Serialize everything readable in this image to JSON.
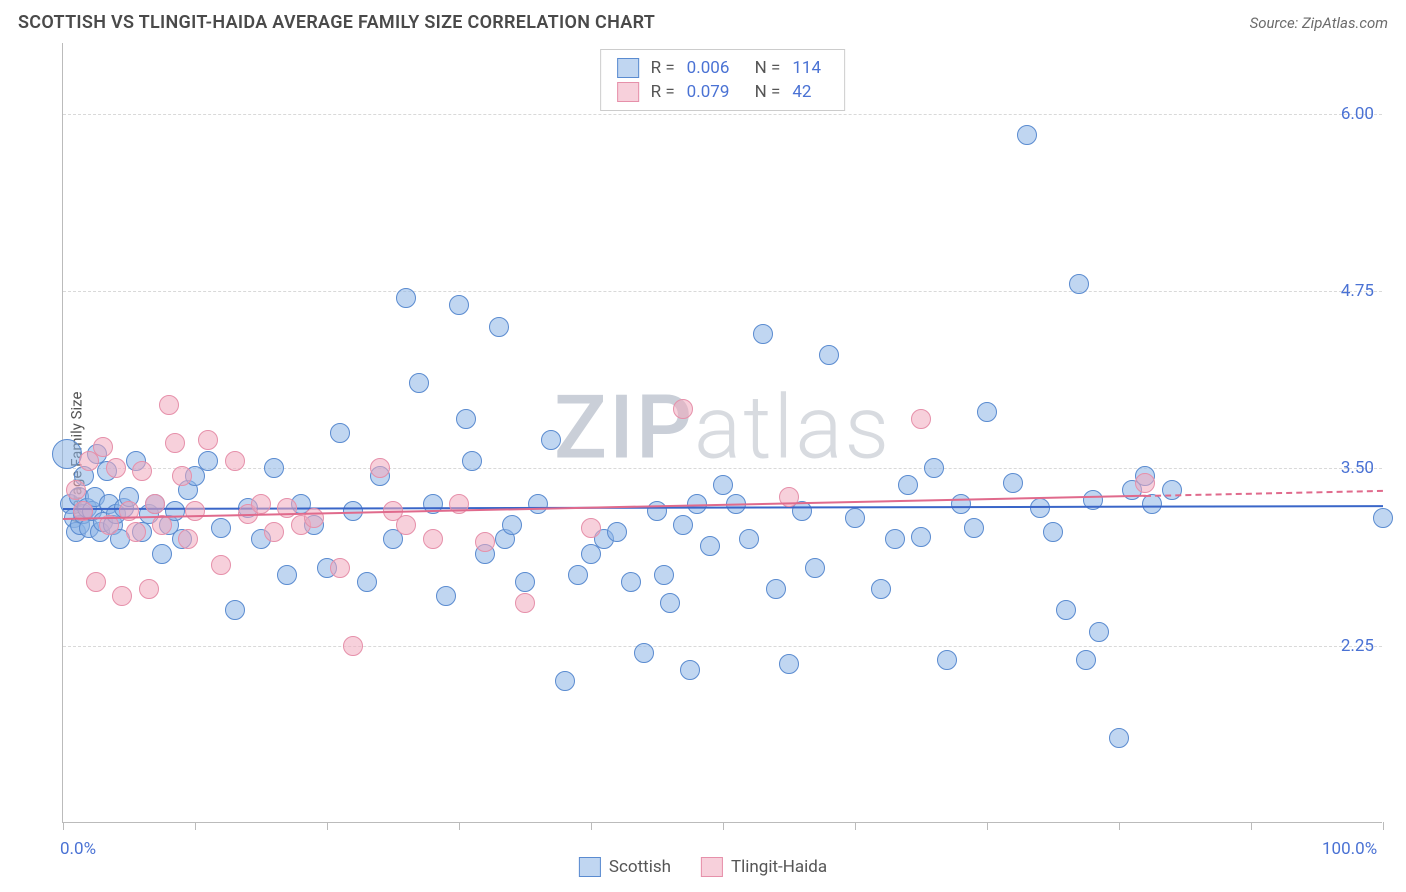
{
  "title": "SCOTTISH VS TLINGIT-HAIDA AVERAGE FAMILY SIZE CORRELATION CHART",
  "source_label": "Source:",
  "source_name": "ZipAtlas.com",
  "ylabel": "Average Family Size",
  "watermark": {
    "bold": "ZIP",
    "rest": "atlas"
  },
  "chart": {
    "type": "scatter",
    "xlim": [
      0,
      100
    ],
    "ylim": [
      1.0,
      6.5
    ],
    "x_ticks": [
      0,
      10,
      20,
      30,
      40,
      50,
      60,
      70,
      80,
      90,
      100
    ],
    "x_tick_labels": {
      "0": "0.0%",
      "100": "100.0%"
    },
    "y_grid": [
      2.25,
      3.5,
      4.75,
      6.0
    ],
    "y_tick_labels": [
      "2.25",
      "3.50",
      "4.75",
      "6.00"
    ],
    "background": "#ffffff",
    "grid_color": "#d9d9d9",
    "axis_color": "#bbbbbb",
    "label_color": "#4a72d4",
    "point_radius": 10,
    "series": [
      {
        "name": "Scottish",
        "fill": "rgba(140,180,230,0.55)",
        "stroke": "#5a8bd0",
        "trend_color": "#3a66c8",
        "trend": {
          "y_start": 3.22,
          "y_end": 3.24,
          "x_solid_end": 100
        },
        "R": "0.006",
        "N": "114",
        "points": [
          [
            0.3,
            3.6,
            "big"
          ],
          [
            0.5,
            3.25
          ],
          [
            0.8,
            3.15
          ],
          [
            1.0,
            3.05
          ],
          [
            1.2,
            3.3
          ],
          [
            1.3,
            3.1
          ],
          [
            1.5,
            3.18
          ],
          [
            1.6,
            3.45
          ],
          [
            1.8,
            3.22
          ],
          [
            2.0,
            3.08
          ],
          [
            2.2,
            3.2
          ],
          [
            2.4,
            3.3
          ],
          [
            2.6,
            3.6
          ],
          [
            2.8,
            3.05
          ],
          [
            3.0,
            3.12
          ],
          [
            3.3,
            3.48
          ],
          [
            3.5,
            3.25
          ],
          [
            3.8,
            3.1
          ],
          [
            4.0,
            3.18
          ],
          [
            4.3,
            3.0
          ],
          [
            4.6,
            3.22
          ],
          [
            5.0,
            3.3
          ],
          [
            5.5,
            3.55
          ],
          [
            6.0,
            3.05
          ],
          [
            6.5,
            3.18
          ],
          [
            7.0,
            3.25
          ],
          [
            7.5,
            2.9
          ],
          [
            8.0,
            3.1
          ],
          [
            8.5,
            3.2
          ],
          [
            9.0,
            3.0
          ],
          [
            9.5,
            3.35
          ],
          [
            10.0,
            3.45
          ],
          [
            11.0,
            3.55
          ],
          [
            12.0,
            3.08
          ],
          [
            13.0,
            2.5
          ],
          [
            14.0,
            3.22
          ],
          [
            15.0,
            3.0
          ],
          [
            16.0,
            3.5
          ],
          [
            17.0,
            2.75
          ],
          [
            18.0,
            3.25
          ],
          [
            19.0,
            3.1
          ],
          [
            20.0,
            2.8
          ],
          [
            21.0,
            3.75
          ],
          [
            22.0,
            3.2
          ],
          [
            23.0,
            2.7
          ],
          [
            24.0,
            3.45
          ],
          [
            25.0,
            3.0
          ],
          [
            26.0,
            4.7
          ],
          [
            27.0,
            4.1
          ],
          [
            28.0,
            3.25
          ],
          [
            29.0,
            2.6
          ],
          [
            30.0,
            4.65
          ],
          [
            30.5,
            3.85
          ],
          [
            31.0,
            3.55
          ],
          [
            32.0,
            2.9
          ],
          [
            33.0,
            4.5
          ],
          [
            33.5,
            3.0
          ],
          [
            34.0,
            3.1
          ],
          [
            35.0,
            2.7
          ],
          [
            36.0,
            3.25
          ],
          [
            37.0,
            3.7
          ],
          [
            38.0,
            2.0
          ],
          [
            39.0,
            2.75
          ],
          [
            40.0,
            2.9
          ],
          [
            41.0,
            3.0
          ],
          [
            42.0,
            3.05
          ],
          [
            43.0,
            2.7
          ],
          [
            44.0,
            2.2
          ],
          [
            45.0,
            3.2
          ],
          [
            45.5,
            2.75
          ],
          [
            46.0,
            2.55
          ],
          [
            47.0,
            3.1
          ],
          [
            47.5,
            2.08
          ],
          [
            48.0,
            3.25
          ],
          [
            49.0,
            2.95
          ],
          [
            50.0,
            3.38
          ],
          [
            51.0,
            3.25
          ],
          [
            52.0,
            3.0
          ],
          [
            53.0,
            4.45
          ],
          [
            54.0,
            2.65
          ],
          [
            55.0,
            2.12
          ],
          [
            56.0,
            3.2
          ],
          [
            57.0,
            2.8
          ],
          [
            58.0,
            4.3
          ],
          [
            60.0,
            3.15
          ],
          [
            62.0,
            2.65
          ],
          [
            63.0,
            3.0
          ],
          [
            64.0,
            3.38
          ],
          [
            65.0,
            3.02
          ],
          [
            66.0,
            3.5
          ],
          [
            67.0,
            2.15
          ],
          [
            68.0,
            3.25
          ],
          [
            69.0,
            3.08
          ],
          [
            70.0,
            3.9
          ],
          [
            72.0,
            3.4
          ],
          [
            73.0,
            5.85
          ],
          [
            74.0,
            3.22
          ],
          [
            75.0,
            3.05
          ],
          [
            76.0,
            2.5
          ],
          [
            77.0,
            4.8
          ],
          [
            77.5,
            2.15
          ],
          [
            78.0,
            3.28
          ],
          [
            78.5,
            2.35
          ],
          [
            80.0,
            1.6
          ],
          [
            81.0,
            3.35
          ],
          [
            82.0,
            3.45
          ],
          [
            82.5,
            3.25
          ],
          [
            84.0,
            3.35
          ],
          [
            100.0,
            3.15
          ]
        ]
      },
      {
        "name": "Tlingit-Haida",
        "fill": "rgba(240,170,190,0.55)",
        "stroke": "#e690aa",
        "trend_color": "#e06a8c",
        "trend": {
          "y_start": 3.15,
          "y_end": 3.35,
          "x_solid_end": 82
        },
        "R": "0.079",
        "N": "42",
        "points": [
          [
            1.0,
            3.35
          ],
          [
            1.5,
            3.2
          ],
          [
            2.0,
            3.55
          ],
          [
            2.5,
            2.7
          ],
          [
            3.0,
            3.65
          ],
          [
            3.5,
            3.1
          ],
          [
            4.0,
            3.5
          ],
          [
            4.5,
            2.6
          ],
          [
            5.0,
            3.2
          ],
          [
            5.5,
            3.05
          ],
          [
            6.0,
            3.48
          ],
          [
            6.5,
            2.65
          ],
          [
            7.0,
            3.25
          ],
          [
            7.5,
            3.1
          ],
          [
            8.0,
            3.95
          ],
          [
            8.5,
            3.68
          ],
          [
            9.0,
            3.45
          ],
          [
            9.5,
            3.0
          ],
          [
            10.0,
            3.2
          ],
          [
            11.0,
            3.7
          ],
          [
            12.0,
            2.82
          ],
          [
            13.0,
            3.55
          ],
          [
            14.0,
            3.18
          ],
          [
            15.0,
            3.25
          ],
          [
            16.0,
            3.05
          ],
          [
            17.0,
            3.22
          ],
          [
            18.0,
            3.1
          ],
          [
            19.0,
            3.15
          ],
          [
            21.0,
            2.8
          ],
          [
            22.0,
            2.25
          ],
          [
            24.0,
            3.5
          ],
          [
            25.0,
            3.2
          ],
          [
            26.0,
            3.1
          ],
          [
            28.0,
            3.0
          ],
          [
            30.0,
            3.25
          ],
          [
            32.0,
            2.98
          ],
          [
            35.0,
            2.55
          ],
          [
            40.0,
            3.08
          ],
          [
            47.0,
            3.92
          ],
          [
            55.0,
            3.3
          ],
          [
            65.0,
            3.85
          ],
          [
            82.0,
            3.4
          ]
        ]
      }
    ],
    "legend": [
      "Scottish",
      "Tlingit-Haida"
    ]
  }
}
